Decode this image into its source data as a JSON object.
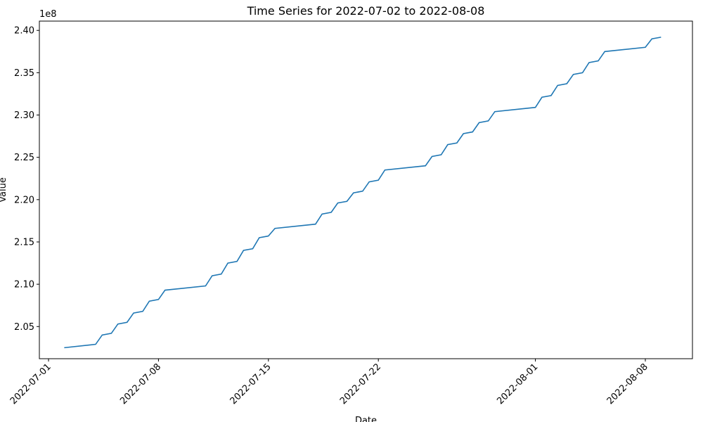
{
  "chart_data": {
    "type": "line",
    "title": "Time Series for 2022-07-02 to 2022-08-08",
    "xlabel": "Date",
    "ylabel": "Value",
    "y_scale_label": "1e8",
    "x_ticks": [
      "2022-07-01",
      "2022-07-08",
      "2022-07-15",
      "2022-07-22",
      "2022-08-01",
      "2022-08-08"
    ],
    "y_ticks": [
      2.05,
      2.1,
      2.15,
      2.2,
      2.25,
      2.3,
      2.35,
      2.4
    ],
    "y_tick_labels": [
      "2.05",
      "2.10",
      "2.15",
      "2.20",
      "2.25",
      "2.30",
      "2.35",
      "2.40"
    ],
    "xlim": [
      "2022-07-00T10:00",
      "2022-08-11T00:00"
    ],
    "ylim": [
      2.012,
      2.411
    ],
    "grid": false,
    "series": [
      {
        "color": "#1f77b4",
        "x": [
          "2022-07-02T00:00",
          "2022-07-04T00:00",
          "2022-07-04T10:00",
          "2022-07-05T00:00",
          "2022-07-05T10:00",
          "2022-07-06T00:00",
          "2022-07-06T10:00",
          "2022-07-07T00:00",
          "2022-07-07T10:00",
          "2022-07-08T00:00",
          "2022-07-08T10:00",
          "2022-07-11T00:00",
          "2022-07-11T10:00",
          "2022-07-12T00:00",
          "2022-07-12T10:00",
          "2022-07-13T00:00",
          "2022-07-13T10:00",
          "2022-07-14T00:00",
          "2022-07-14T10:00",
          "2022-07-15T00:00",
          "2022-07-15T10:00",
          "2022-07-18T00:00",
          "2022-07-18T10:00",
          "2022-07-19T00:00",
          "2022-07-19T10:00",
          "2022-07-20T00:00",
          "2022-07-20T10:00",
          "2022-07-21T00:00",
          "2022-07-21T10:00",
          "2022-07-22T00:00",
          "2022-07-22T10:00",
          "2022-07-25T00:00",
          "2022-07-25T10:00",
          "2022-07-26T00:00",
          "2022-07-26T10:00",
          "2022-07-27T00:00",
          "2022-07-27T10:00",
          "2022-07-28T00:00",
          "2022-07-28T10:00",
          "2022-07-29T00:00",
          "2022-07-29T10:00",
          "2022-08-01T00:00",
          "2022-08-01T10:00",
          "2022-08-02T00:00",
          "2022-08-02T10:00",
          "2022-08-03T00:00",
          "2022-08-03T10:00",
          "2022-08-04T00:00",
          "2022-08-04T10:00",
          "2022-08-05T00:00",
          "2022-08-05T10:00",
          "2022-08-08T00:00",
          "2022-08-08T10:00",
          "2022-08-09T00:00"
        ],
        "y": [
          2.025,
          2.029,
          2.04,
          2.042,
          2.053,
          2.055,
          2.066,
          2.068,
          2.08,
          2.082,
          2.093,
          2.098,
          2.11,
          2.112,
          2.125,
          2.127,
          2.14,
          2.142,
          2.155,
          2.157,
          2.166,
          2.171,
          2.183,
          2.185,
          2.196,
          2.198,
          2.208,
          2.21,
          2.221,
          2.223,
          2.235,
          2.24,
          2.251,
          2.253,
          2.265,
          2.267,
          2.278,
          2.28,
          2.291,
          2.293,
          2.304,
          2.309,
          2.321,
          2.323,
          2.335,
          2.337,
          2.348,
          2.35,
          2.362,
          2.364,
          2.375,
          2.38,
          2.39,
          2.392
        ]
      }
    ]
  }
}
